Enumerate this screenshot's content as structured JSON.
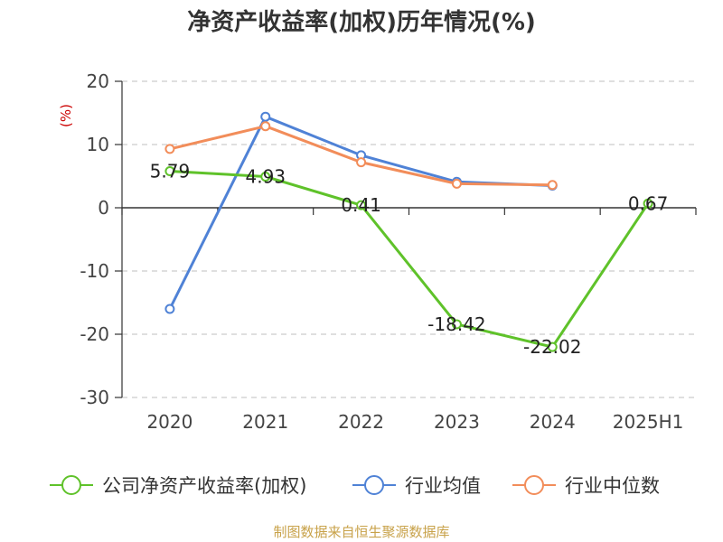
{
  "chart_data": {
    "type": "line",
    "title": "净资产收益率(加权)历年情况(%)",
    "ylabel": "(%)",
    "categories": [
      "2020",
      "2021",
      "2022",
      "2023",
      "2024",
      "2025H1"
    ],
    "y_ticks": [
      20,
      10,
      0,
      -10,
      -20,
      -30
    ],
    "ylim": [
      -30,
      20
    ],
    "grid": "horizontal-dashed",
    "legend_position": "bottom",
    "series": [
      {
        "name": "公司净资产收益率(加权)",
        "color": "#5fc22a",
        "values": [
          5.79,
          4.93,
          0.41,
          -18.42,
          -22.02,
          0.67
        ],
        "labels": [
          "5.79",
          "4.93",
          "0.41",
          "-18.42",
          "-22.02",
          "0.67"
        ]
      },
      {
        "name": "行业均值",
        "color": "#4f82d6",
        "values": [
          -16.0,
          14.4,
          8.3,
          4.1,
          3.5,
          null
        ]
      },
      {
        "name": "行业中位数",
        "color": "#f28d5a",
        "values": [
          9.3,
          12.9,
          7.2,
          3.8,
          3.6,
          null
        ]
      }
    ]
  },
  "source_note": "制图数据来自恒生聚源数据库"
}
